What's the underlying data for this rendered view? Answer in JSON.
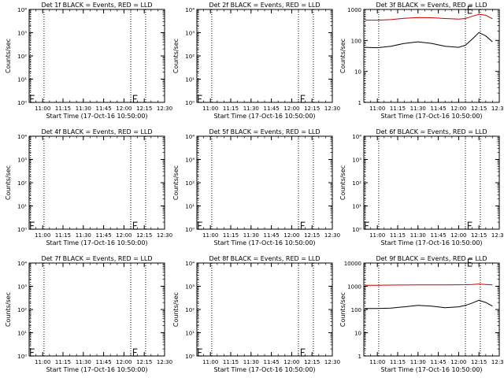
{
  "x_tick_labels": [
    "11:00",
    "11:15",
    "11:30",
    "11:45",
    "12:00",
    "12:15",
    "12:30"
  ],
  "x_label": "Start Time (17-Oct-16 10:50:00)",
  "y_label": "Counts/sec",
  "colors": {
    "events": "#000000",
    "lld": "#cc0000"
  },
  "chart_data": [
    {
      "type": "line",
      "title": "Det 1f BLACK = Events, RED = LLD",
      "xlabel": "Start Time (17-Oct-16 10:50:00)",
      "ylabel": "Counts/sec",
      "xlim": [
        "10:50",
        "12:30"
      ],
      "ylim": [
        1,
        10000
      ],
      "yscale": "log",
      "y_tick_labels": [
        "10⁰",
        "10¹",
        "10²",
        "10³",
        "10⁴"
      ],
      "vlines": [
        "10:51",
        "11:01",
        "12:05",
        "12:16"
      ],
      "series": [],
      "markers": [
        [
          "10:51",
          1.35
        ],
        [
          "12:07",
          1.35
        ]
      ]
    },
    {
      "type": "line",
      "title": "Det 2f BLACK = Events, RED = LLD",
      "xlabel": "Start Time (17-Oct-16 10:50:00)",
      "ylabel": "Counts/sec",
      "xlim": [
        "10:50",
        "12:30"
      ],
      "ylim": [
        1,
        10000
      ],
      "yscale": "log",
      "y_tick_labels": [
        "10⁰",
        "10¹",
        "10²",
        "10³",
        "10⁴"
      ],
      "vlines": [
        "10:51",
        "11:01",
        "12:05",
        "12:16"
      ],
      "series": [],
      "markers": [
        [
          "10:51",
          1.35
        ],
        [
          "12:07",
          1.35
        ]
      ]
    },
    {
      "type": "line",
      "title": "Det 3f BLACK = Events, RED = LLD",
      "xlabel": "Start Time (17-Oct-16 10:50:00)",
      "ylabel": "Counts/sec",
      "xlim": [
        "10:50",
        "12:30"
      ],
      "ylim": [
        1,
        1000
      ],
      "yscale": "log",
      "y_tick_labels": [
        "1",
        "10",
        "100",
        "1000"
      ],
      "vlines": [
        "10:51",
        "11:01",
        "12:05",
        "12:16"
      ],
      "series": [
        {
          "color": "lld",
          "x": [
            "10:51",
            "11:00",
            "11:10",
            "11:20",
            "11:30",
            "11:40",
            "11:50",
            "12:00",
            "12:05",
            "12:10",
            "12:15",
            "12:20",
            "12:25"
          ],
          "y": [
            450,
            450,
            470,
            520,
            550,
            540,
            510,
            490,
            510,
            600,
            700,
            650,
            500
          ]
        },
        {
          "color": "events",
          "x": [
            "10:51",
            "11:00",
            "11:10",
            "11:20",
            "11:30",
            "11:40",
            "11:50",
            "12:00",
            "12:05",
            "12:10",
            "12:15",
            "12:20",
            "12:25"
          ],
          "y": [
            60,
            58,
            65,
            80,
            90,
            80,
            65,
            60,
            70,
            110,
            180,
            140,
            90
          ]
        }
      ],
      "markers": [
        [
          "12:07",
          950
        ]
      ]
    },
    {
      "type": "line",
      "title": "Det 4f BLACK = Events, RED = LLD",
      "xlabel": "Start Time (17-Oct-16 10:50:00)",
      "ylabel": "Counts/sec",
      "xlim": [
        "10:50",
        "12:30"
      ],
      "ylim": [
        1,
        10000
      ],
      "yscale": "log",
      "y_tick_labels": [
        "10⁰",
        "10¹",
        "10²",
        "10³",
        "10⁴"
      ],
      "vlines": [
        "10:51",
        "11:01",
        "12:05",
        "12:16"
      ],
      "series": [],
      "markers": [
        [
          "10:51",
          1.35
        ],
        [
          "12:07",
          1.35
        ]
      ]
    },
    {
      "type": "line",
      "title": "Det 5f BLACK = Events, RED = LLD",
      "xlabel": "Start Time (17-Oct-16 10:50:00)",
      "ylabel": "Counts/sec",
      "xlim": [
        "10:50",
        "12:30"
      ],
      "ylim": [
        1,
        10000
      ],
      "yscale": "log",
      "y_tick_labels": [
        "10⁰",
        "10¹",
        "10²",
        "10³",
        "10⁴"
      ],
      "vlines": [
        "10:51",
        "11:01",
        "12:05",
        "12:16"
      ],
      "series": [],
      "markers": [
        [
          "10:51",
          1.35
        ],
        [
          "12:07",
          1.35
        ]
      ]
    },
    {
      "type": "line",
      "title": "Det 6f BLACK = Events, RED = LLD",
      "xlabel": "Start Time (17-Oct-16 10:50:00)",
      "ylabel": "Counts/sec",
      "xlim": [
        "10:50",
        "12:30"
      ],
      "ylim": [
        1,
        10000
      ],
      "yscale": "log",
      "y_tick_labels": [
        "10⁰",
        "10¹",
        "10²",
        "10³",
        "10⁴"
      ],
      "vlines": [
        "10:51",
        "11:01",
        "12:05",
        "12:16"
      ],
      "series": [],
      "markers": [
        [
          "10:51",
          1.35
        ],
        [
          "12:07",
          1.35
        ]
      ]
    },
    {
      "type": "line",
      "title": "Det 7f BLACK = Events, RED = LLD",
      "xlabel": "Start Time (17-Oct-16 10:50:00)",
      "ylabel": "Counts/sec",
      "xlim": [
        "10:50",
        "12:30"
      ],
      "ylim": [
        1,
        10000
      ],
      "yscale": "log",
      "y_tick_labels": [
        "10⁰",
        "10¹",
        "10²",
        "10³",
        "10⁴"
      ],
      "vlines": [
        "10:51",
        "11:01",
        "12:05",
        "12:16"
      ],
      "series": [],
      "markers": [
        [
          "10:51",
          1.35
        ],
        [
          "12:07",
          1.35
        ]
      ]
    },
    {
      "type": "line",
      "title": "Det 8f BLACK = Events, RED = LLD",
      "xlabel": "Start Time (17-Oct-16 10:50:00)",
      "ylabel": "Counts/sec",
      "xlim": [
        "10:50",
        "12:30"
      ],
      "ylim": [
        1,
        10000
      ],
      "yscale": "log",
      "y_tick_labels": [
        "10⁰",
        "10¹",
        "10²",
        "10³",
        "10⁴"
      ],
      "vlines": [
        "10:51",
        "11:01",
        "12:05",
        "12:16"
      ],
      "series": [],
      "markers": [
        [
          "10:51",
          1.35
        ],
        [
          "12:07",
          1.35
        ]
      ]
    },
    {
      "type": "line",
      "title": "Det 9f BLACK = Events, RED = LLD",
      "xlabel": "Start Time (17-Oct-16 10:50:00)",
      "ylabel": "Counts/sec",
      "xlim": [
        "10:50",
        "12:30"
      ],
      "ylim": [
        1,
        10000
      ],
      "yscale": "log",
      "y_tick_labels": [
        "1",
        "10",
        "100",
        "1000",
        "10000"
      ],
      "vlines": [
        "10:51",
        "11:01",
        "12:05",
        "12:16"
      ],
      "series": [
        {
          "color": "lld",
          "x": [
            "10:51",
            "11:00",
            "11:10",
            "11:20",
            "11:30",
            "11:40",
            "11:50",
            "12:00",
            "12:05",
            "12:10",
            "12:15",
            "12:20",
            "12:25"
          ],
          "y": [
            1100,
            1100,
            1120,
            1130,
            1150,
            1140,
            1150,
            1160,
            1170,
            1200,
            1250,
            1200,
            1150
          ]
        },
        {
          "color": "events",
          "x": [
            "10:51",
            "11:00",
            "11:10",
            "11:20",
            "11:30",
            "11:40",
            "11:50",
            "12:00",
            "12:05",
            "12:10",
            "12:15",
            "12:20",
            "12:25"
          ],
          "y": [
            110,
            110,
            115,
            130,
            150,
            140,
            120,
            130,
            150,
            190,
            250,
            200,
            140
          ]
        }
      ],
      "markers": [
        [
          "12:07",
          10000
        ]
      ]
    }
  ]
}
